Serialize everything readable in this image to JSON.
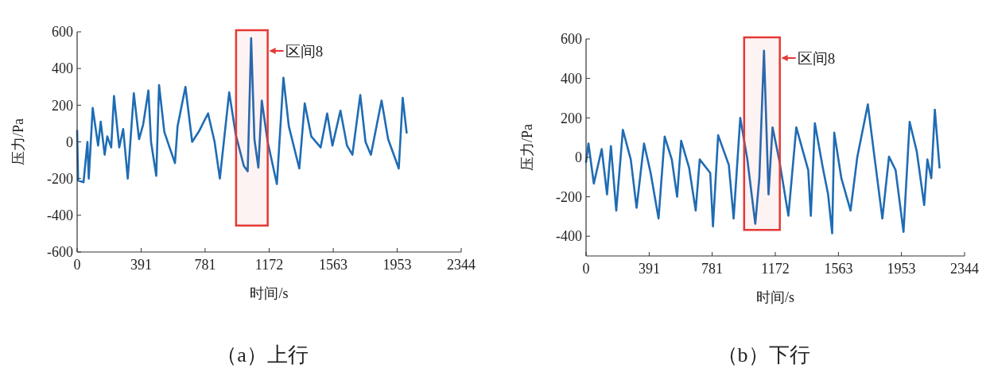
{
  "chart_data": [
    {
      "type": "line",
      "title": "（a）上行",
      "xlabel": "时间/s",
      "ylabel": "压力/Pa",
      "xlim": [
        0,
        2344
      ],
      "xticks": [
        0,
        391,
        781,
        1172,
        1563,
        1953,
        2344
      ],
      "ylim": [
        -600,
        600
      ],
      "yticks": [
        -600,
        -400,
        -200,
        0,
        200,
        400,
        600
      ],
      "grid": false,
      "marker": "none",
      "line_style": "solid",
      "bands": [
        {
          "axis": "x",
          "from": 970,
          "to": 1163,
          "label": "区间8",
          "color": "#e53935"
        }
      ],
      "series": [
        {
          "color": "#1f6cb4",
          "x": [
            0,
            6,
            39,
            63,
            71,
            95,
            128,
            144,
            168,
            184,
            208,
            225,
            257,
            281,
            309,
            346,
            378,
            403,
            435,
            451,
            483,
            500,
            532,
            564,
            597,
            613,
            661,
            702,
            742,
            799,
            839,
            871,
            928,
            968,
            1017,
            1041,
            1062,
            1082,
            1106,
            1127,
            1163,
            1219,
            1259,
            1292,
            1356,
            1389,
            1429,
            1486,
            1526,
            1558,
            1607,
            1647,
            1680,
            1728,
            1760,
            1793,
            1858,
            1898,
            1963,
            1987,
            2011
          ],
          "values": [
            60,
            -210,
            -220,
            0,
            -200,
            185,
            -20,
            110,
            -70,
            30,
            -30,
            250,
            -30,
            70,
            -200,
            265,
            15,
            95,
            280,
            0,
            -185,
            310,
            55,
            -30,
            -115,
            85,
            300,
            0,
            55,
            155,
            0,
            -200,
            270,
            40,
            -130,
            -160,
            565,
            15,
            -140,
            225,
            0,
            -230,
            350,
            85,
            -145,
            210,
            30,
            -30,
            155,
            -20,
            170,
            -20,
            -70,
            255,
            0,
            -70,
            225,
            15,
            -145,
            240,
            50
          ]
        }
      ]
    },
    {
      "type": "line",
      "title": "（b）下行",
      "xlabel": "时间/s",
      "ylabel": "压力/Pa",
      "xlim": [
        0,
        2344
      ],
      "xticks": [
        0,
        391,
        781,
        1172,
        1563,
        1953,
        2344
      ],
      "ylim": [
        -500,
        600
      ],
      "yticks": [
        -400,
        -200,
        0,
        200,
        400,
        600
      ],
      "grid": false,
      "marker": "none",
      "line_style": "solid",
      "bands": [
        {
          "axis": "x",
          "from": 979,
          "to": 1200,
          "label": "区间8",
          "color": "#e53935"
        }
      ],
      "series": [
        {
          "color": "#1f6cb4",
          "x": [
            0,
            15,
            48,
            97,
            130,
            154,
            187,
            228,
            277,
            313,
            359,
            400,
            449,
            487,
            531,
            564,
            589,
            638,
            679,
            704,
            769,
            786,
            818,
            884,
            914,
            955,
            999,
            1048,
            1073,
            1102,
            1130,
            1155,
            1196,
            1253,
            1302,
            1376,
            1392,
            1417,
            1466,
            1499,
            1524,
            1537,
            1581,
            1638,
            1680,
            1745,
            1786,
            1835,
            1876,
            1917,
            1966,
            2004,
            2048,
            2094,
            2114,
            2138,
            2160,
            2189
          ],
          "values": [
            -24,
            70,
            -133,
            42,
            -188,
            57,
            -270,
            139,
            -11,
            -256,
            70,
            -79,
            -310,
            105,
            -11,
            -200,
            84,
            -52,
            -270,
            -11,
            -79,
            -350,
            112,
            -38,
            -310,
            200,
            -11,
            -337,
            -106,
            540,
            -188,
            152,
            -11,
            -296,
            152,
            -65,
            -296,
            173,
            -52,
            -188,
            -385,
            125,
            -106,
            -270,
            3,
            268,
            3,
            -310,
            3,
            -65,
            -378,
            180,
            30,
            -242,
            -11,
            -106,
            241,
            -52
          ]
        }
      ]
    }
  ]
}
